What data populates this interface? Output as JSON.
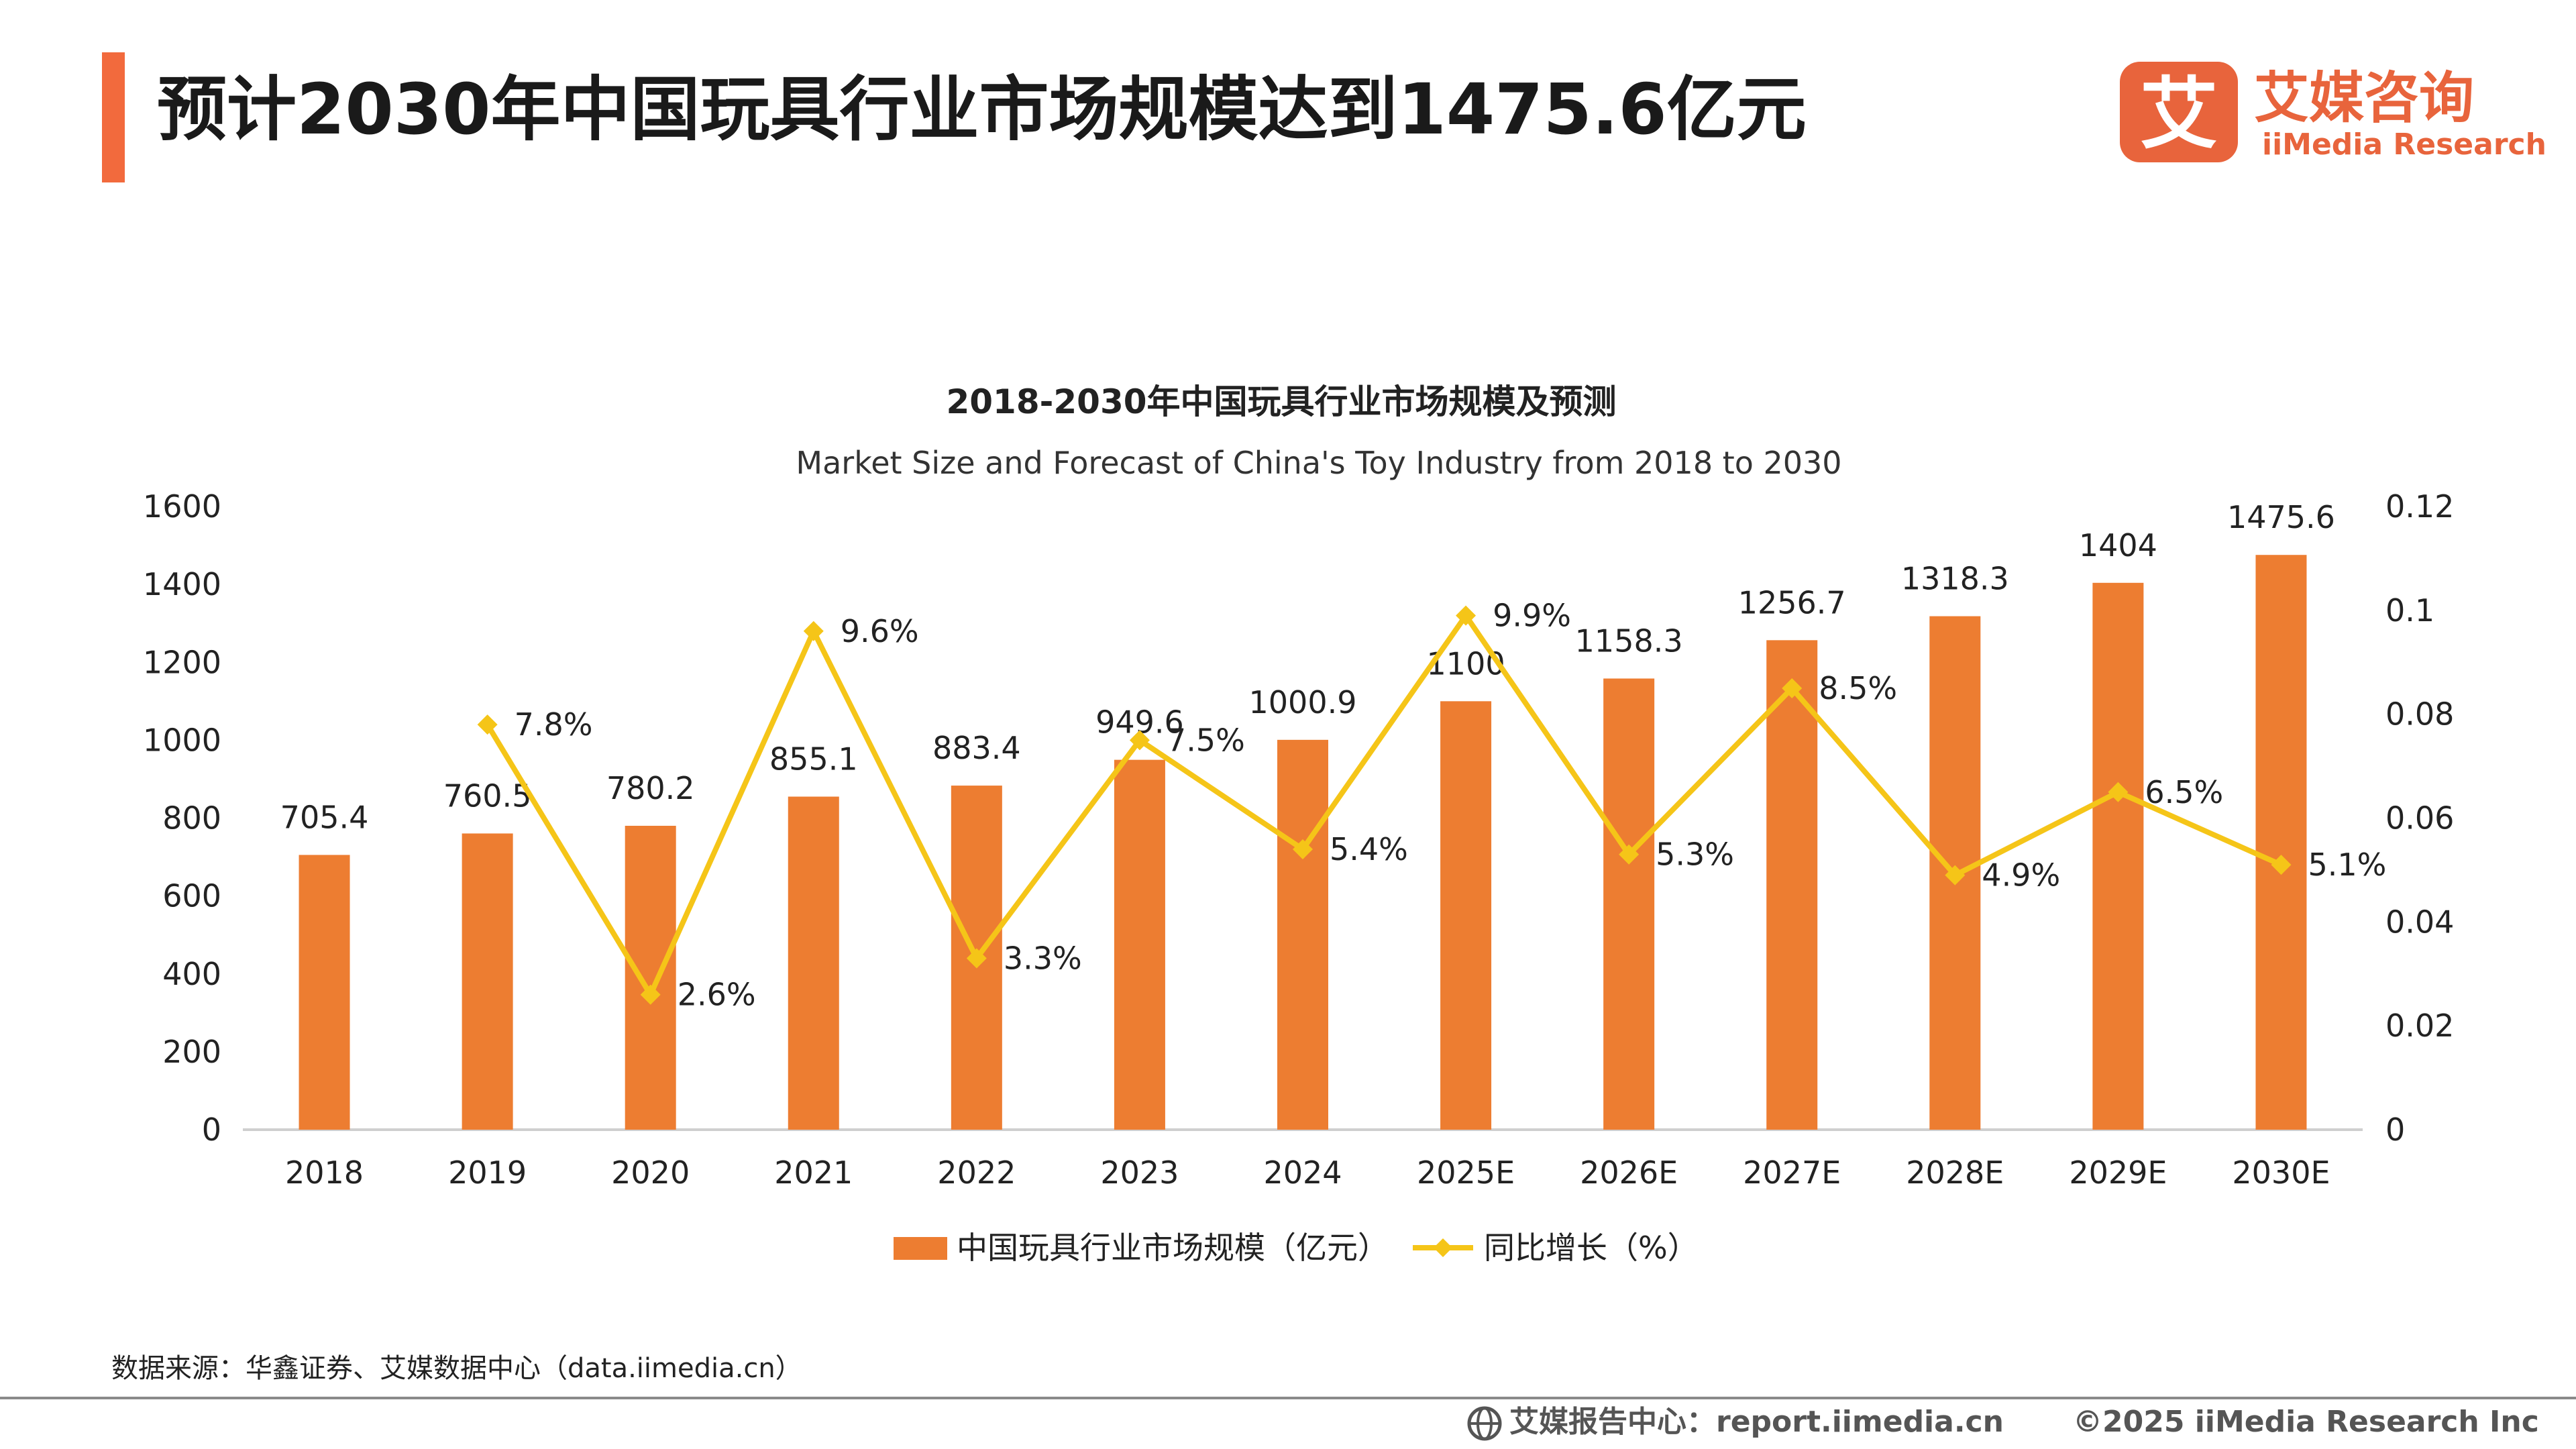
{
  "page": {
    "title": "预计2030年中国玩具行业市场规模达到1475.6亿元",
    "accent_color": "#f26a3d"
  },
  "logo": {
    "icon_char": "艾",
    "name_cn": "艾媒咨询",
    "name_en": "iiMedia Research",
    "color": "#e8643c"
  },
  "chart_data": {
    "type": "bar+line",
    "title": "2018-2030年中国玩具行业市场规模及预测",
    "subtitle": "Market Size and Forecast of China's Toy Industry from 2018 to 2030",
    "categories": [
      "2018",
      "2019",
      "2020",
      "2021",
      "2022",
      "2023",
      "2024",
      "2025E",
      "2026E",
      "2027E",
      "2028E",
      "2029E",
      "2030E"
    ],
    "series": [
      {
        "name": "中国玩具行业市场规模（亿元）",
        "type": "bar",
        "axis": "left",
        "color": "#ed7d31",
        "values": [
          705.4,
          760.5,
          780.2,
          855.1,
          883.4,
          949.6,
          1000.9,
          1100,
          1158.3,
          1256.7,
          1318.3,
          1404,
          1475.6
        ],
        "labels": [
          "705.4",
          "760.5",
          "780.2",
          "855.1",
          "883.4",
          "949.6",
          "1000.9",
          "1100",
          "1158.3",
          "1256.7",
          "1318.3",
          "1404",
          "1475.6"
        ]
      },
      {
        "name": "同比增长（%）",
        "type": "line",
        "axis": "right",
        "color": "#f5c518",
        "values": [
          null,
          0.078,
          0.026,
          0.096,
          0.033,
          0.075,
          0.054,
          0.099,
          0.053,
          0.085,
          0.049,
          0.065,
          0.051
        ],
        "labels": [
          "",
          "7.8%",
          "2.6%",
          "9.6%",
          "3.3%",
          "7.5%",
          "5.4%",
          "9.9%",
          "5.3%",
          "8.5%",
          "4.9%",
          "6.5%",
          "5.1%"
        ]
      }
    ],
    "y_left": {
      "min": 0,
      "max": 1600,
      "ticks": [
        "0",
        "200",
        "400",
        "600",
        "800",
        "1000",
        "1200",
        "1400",
        "1600"
      ]
    },
    "y_right": {
      "min": 0,
      "max": 0.12,
      "ticks": [
        "0",
        "0.02",
        "0.04",
        "0.06",
        "0.08",
        "0.1",
        "0.12"
      ]
    },
    "grid": false,
    "legend_position": "bottom"
  },
  "footer": {
    "source": "数据来源：华鑫证券、艾媒数据中心（data.iimedia.cn）",
    "report_center": "艾媒报告中心：report.iimedia.cn",
    "copyright": "©2025  iiMedia Research  Inc"
  }
}
